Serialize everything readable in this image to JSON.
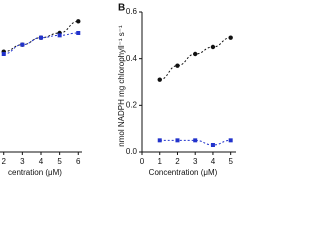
{
  "chart_data": [
    {
      "type": "scatter-line",
      "xlabel": "centration (μM)",
      "x": [
        2,
        3,
        4,
        5,
        6
      ],
      "xlim": [
        1.8,
        6.2
      ],
      "xticks": [
        2,
        3,
        4,
        5,
        6
      ],
      "ylim": [
        0,
        0.6
      ],
      "series": [
        {
          "color": "#111111",
          "marker": "circle",
          "values": [
            0.43,
            0.46,
            0.49,
            0.51,
            0.56
          ]
        },
        {
          "color": "#2233cc",
          "marker": "square",
          "values": [
            0.42,
            0.46,
            0.49,
            0.5,
            0.51
          ]
        }
      ]
    },
    {
      "type": "scatter-line",
      "panel_label": "B",
      "xlabel": "Concentration (μM)",
      "ylabel": "nmol NADPH mg chlorophyll⁻¹ s⁻¹",
      "x": [
        1,
        2,
        3,
        4,
        5
      ],
      "xlim": [
        0,
        5.3
      ],
      "xticks": [
        0,
        1,
        2,
        3,
        4,
        5
      ],
      "ylim": [
        0,
        0.6
      ],
      "yticks": [
        {
          "value": 0,
          "label": "0.0"
        },
        0.2,
        0.4,
        0.6
      ],
      "series": [
        {
          "color": "#111111",
          "marker": "circle",
          "values": [
            0.31,
            0.37,
            0.42,
            0.45,
            0.49
          ]
        },
        {
          "color": "#2233cc",
          "marker": "square",
          "values": [
            0.05,
            0.05,
            0.05,
            0.03,
            0.05
          ]
        }
      ]
    }
  ]
}
